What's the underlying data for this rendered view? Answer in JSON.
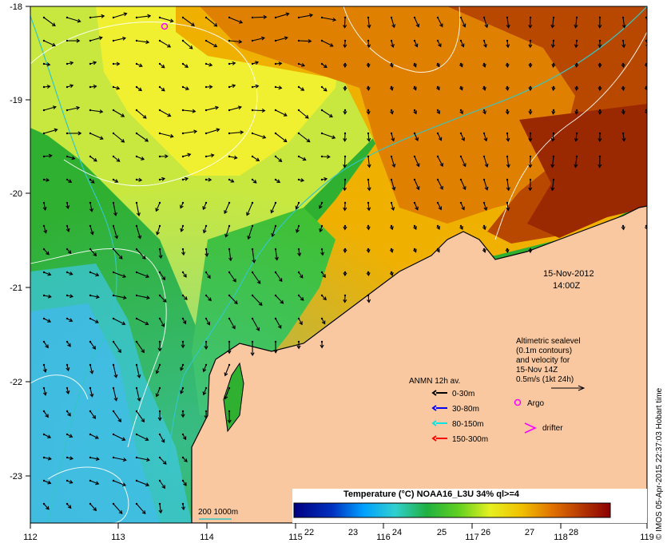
{
  "map": {
    "date": "15-Nov-2012",
    "time": "14:00Z",
    "credit": "© IMOS 05-Apr-2015 22:37:03 Hobart time",
    "lon_ticks": [
      "112",
      "113",
      "114",
      "115",
      "116",
      "117",
      "118",
      "119"
    ],
    "lat_ticks": [
      "-18",
      "-19",
      "-20",
      "-21",
      "-22",
      "-23"
    ],
    "sealevel_note": [
      "Altimetric sealevel",
      "(0.1m contours)",
      "and velocity for",
      "15-Nov 14Z",
      "0.5m/s (1kt 24h)"
    ],
    "argo_label": "Argo",
    "drifter_label": "drifter",
    "anmn": {
      "title": "ANMN 12h av.",
      "entries": [
        {
          "label": "0-30m",
          "color": "#000000"
        },
        {
          "label": "30-80m",
          "color": "#0000ff"
        },
        {
          "label": "80-150m",
          "color": "#00e6e6"
        },
        {
          "label": "150-300m",
          "color": "#ff0000"
        }
      ]
    },
    "isobath_label": "200  1000m",
    "colorbar": {
      "title": "Temperature (°C) NOAA16_L3U 34% ql>=4",
      "ticks": [
        "22",
        "23",
        "24",
        "25",
        "26",
        "27",
        "28"
      ]
    },
    "colors": {
      "land": "#f9c8a0",
      "isobath": "#33c6c6",
      "argo": "#ff00ff",
      "drifter": "#ff00ff"
    }
  }
}
